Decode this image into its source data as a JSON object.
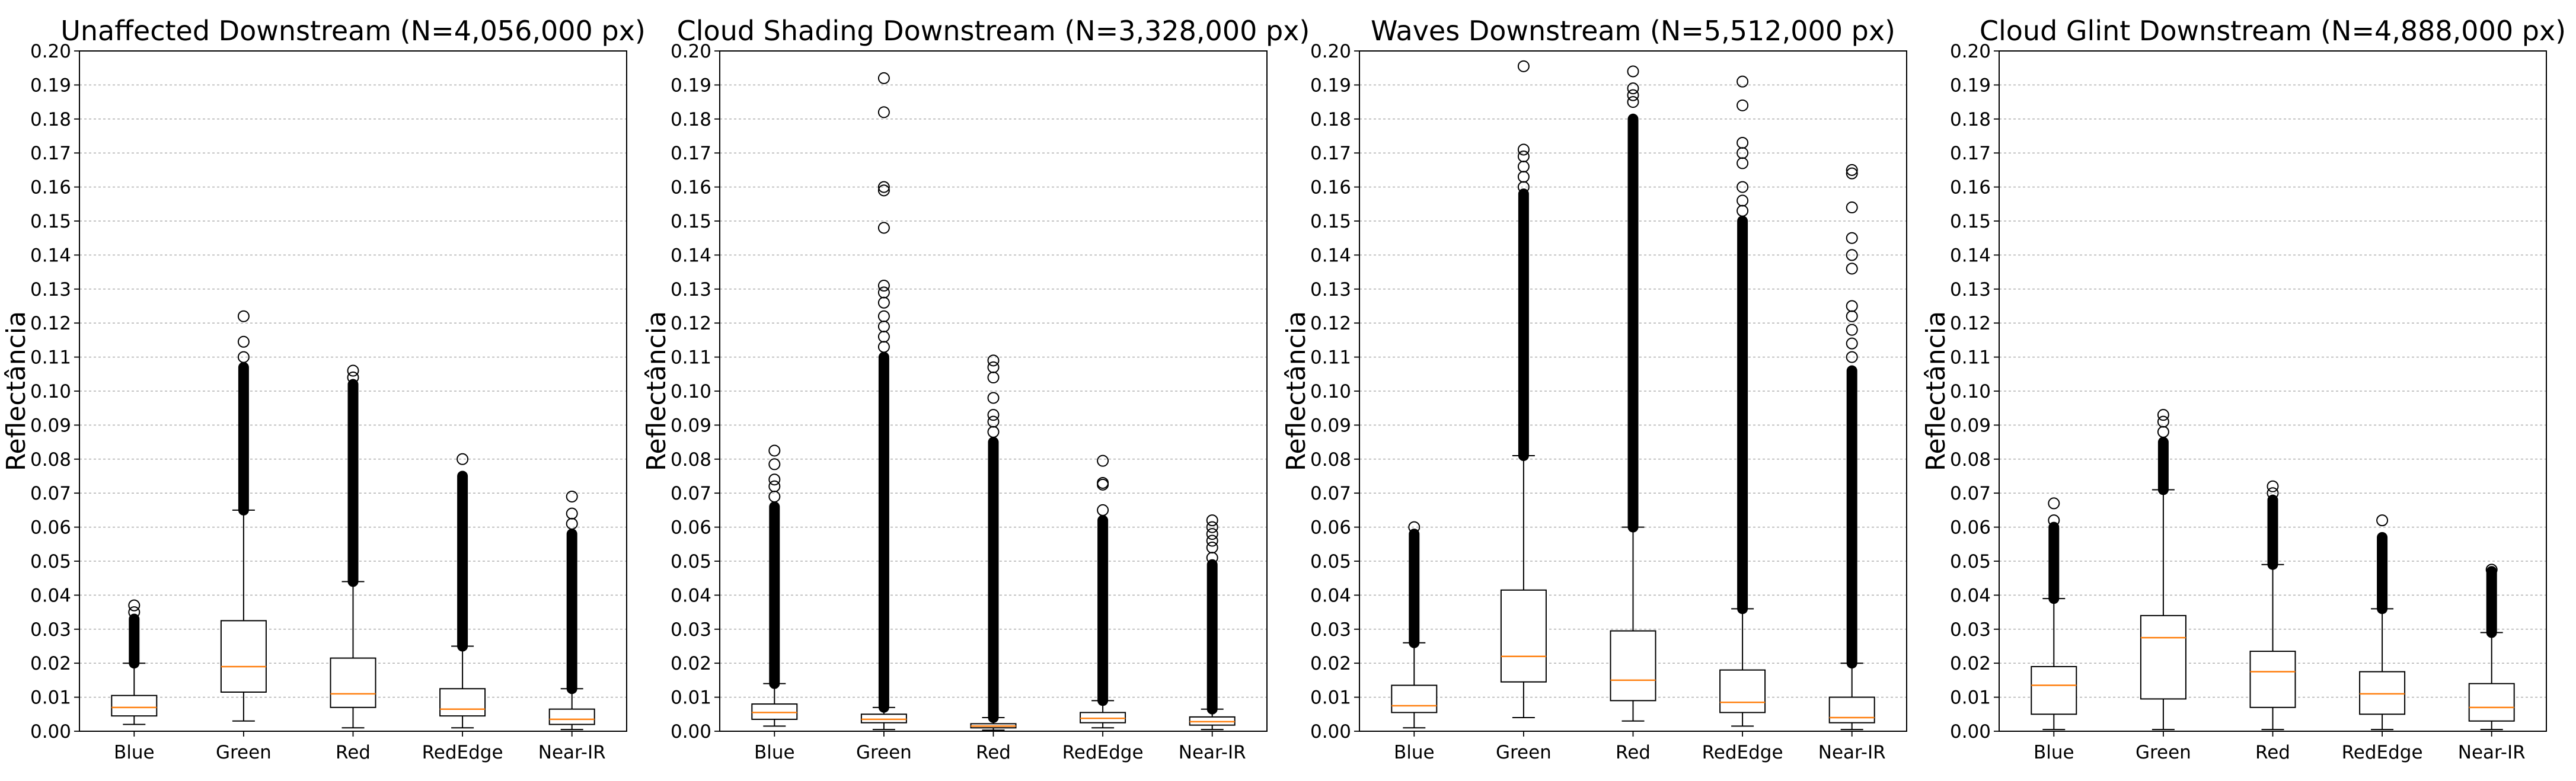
{
  "figure": {
    "background": "#ffffff"
  },
  "style": {
    "box_edge": "#000000",
    "median_color": "#ff7f0e",
    "outlier_edge": "#000000",
    "grid_color": "#b0b0b0"
  },
  "chart_data": [
    {
      "type": "boxplot",
      "title": "Unaffected Downstream (N=4,056,000 px)",
      "ylabel": "Reflectância",
      "xlabel": "",
      "ylim": [
        0,
        0.2
      ],
      "yticks": [
        "0.00",
        "0.01",
        "0.02",
        "0.03",
        "0.04",
        "0.05",
        "0.06",
        "0.07",
        "0.08",
        "0.09",
        "0.10",
        "0.11",
        "0.12",
        "0.13",
        "0.14",
        "0.15",
        "0.16",
        "0.17",
        "0.18",
        "0.19",
        "0.20"
      ],
      "grid": "y-dashed",
      "categories": [
        "Blue",
        "Green",
        "Red",
        "RedEdge",
        "Near-IR"
      ],
      "boxes": [
        {
          "whisker_low": 0.002,
          "q1": 0.0045,
          "median": 0.007,
          "q3": 0.0105,
          "whisker_high": 0.02,
          "flier_dense": [
            0.02,
            0.033
          ],
          "fliers": [
            0.035,
            0.037
          ]
        },
        {
          "whisker_low": 0.003,
          "q1": 0.0115,
          "median": 0.019,
          "q3": 0.0325,
          "whisker_high": 0.065,
          "flier_dense": [
            0.065,
            0.107
          ],
          "fliers": [
            0.11,
            0.1145,
            0.122
          ]
        },
        {
          "whisker_low": 0.001,
          "q1": 0.007,
          "median": 0.011,
          "q3": 0.0215,
          "whisker_high": 0.044,
          "flier_dense": [
            0.044,
            0.102
          ],
          "fliers": [
            0.104,
            0.106
          ]
        },
        {
          "whisker_low": 0.001,
          "q1": 0.0045,
          "median": 0.0065,
          "q3": 0.0125,
          "whisker_high": 0.025,
          "flier_dense": [
            0.025,
            0.075
          ],
          "fliers": [
            0.08
          ]
        },
        {
          "whisker_low": 0.0005,
          "q1": 0.002,
          "median": 0.0035,
          "q3": 0.0065,
          "whisker_high": 0.0125,
          "flier_dense": [
            0.0125,
            0.058
          ],
          "fliers": [
            0.061,
            0.064,
            0.069
          ]
        }
      ]
    },
    {
      "type": "boxplot",
      "title": "Cloud Shading Downstream (N=3,328,000 px)",
      "ylabel": "Reflectância",
      "xlabel": "",
      "ylim": [
        0,
        0.2
      ],
      "yticks": [
        "0.00",
        "0.01",
        "0.02",
        "0.03",
        "0.04",
        "0.05",
        "0.06",
        "0.07",
        "0.08",
        "0.09",
        "0.10",
        "0.11",
        "0.12",
        "0.13",
        "0.14",
        "0.15",
        "0.16",
        "0.17",
        "0.18",
        "0.19",
        "0.20"
      ],
      "grid": "y-dashed",
      "categories": [
        "Blue",
        "Green",
        "Red",
        "RedEdge",
        "Near-IR"
      ],
      "boxes": [
        {
          "whisker_low": 0.0015,
          "q1": 0.0035,
          "median": 0.0055,
          "q3": 0.008,
          "whisker_high": 0.014,
          "flier_dense": [
            0.014,
            0.066
          ],
          "fliers": [
            0.069,
            0.072,
            0.074,
            0.0785,
            0.0825
          ]
        },
        {
          "whisker_low": 0.0005,
          "q1": 0.0025,
          "median": 0.0035,
          "q3": 0.005,
          "whisker_high": 0.007,
          "flier_dense": [
            0.007,
            0.11
          ],
          "fliers": [
            0.113,
            0.116,
            0.119,
            0.122,
            0.126,
            0.129,
            0.131,
            0.148,
            0.159,
            0.16,
            0.182,
            0.192
          ]
        },
        {
          "whisker_low": 0.0003,
          "q1": 0.001,
          "median": 0.0015,
          "q3": 0.0022,
          "whisker_high": 0.004,
          "flier_dense": [
            0.004,
            0.085
          ],
          "fliers": [
            0.088,
            0.091,
            0.093,
            0.098,
            0.104,
            0.107,
            0.109
          ]
        },
        {
          "whisker_low": 0.001,
          "q1": 0.0025,
          "median": 0.0038,
          "q3": 0.0055,
          "whisker_high": 0.009,
          "flier_dense": [
            0.009,
            0.062
          ],
          "fliers": [
            0.065,
            0.0725,
            0.073,
            0.0795
          ]
        },
        {
          "whisker_low": 0.0005,
          "q1": 0.0018,
          "median": 0.0028,
          "q3": 0.0042,
          "whisker_high": 0.0065,
          "flier_dense": [
            0.0065,
            0.049
          ],
          "fliers": [
            0.051,
            0.054,
            0.056,
            0.058,
            0.06,
            0.062
          ]
        }
      ]
    },
    {
      "type": "boxplot",
      "title": "Waves Downstream (N=5,512,000 px)",
      "ylabel": "Reflectância",
      "xlabel": "",
      "ylim": [
        0,
        0.2
      ],
      "yticks": [
        "0.00",
        "0.01",
        "0.02",
        "0.03",
        "0.04",
        "0.05",
        "0.06",
        "0.07",
        "0.08",
        "0.09",
        "0.10",
        "0.11",
        "0.12",
        "0.13",
        "0.14",
        "0.15",
        "0.16",
        "0.17",
        "0.18",
        "0.19",
        "0.20"
      ],
      "grid": "y-dashed",
      "categories": [
        "Blue",
        "Green",
        "Red",
        "RedEdge",
        "Near-IR"
      ],
      "boxes": [
        {
          "whisker_low": 0.001,
          "q1": 0.0055,
          "median": 0.0075,
          "q3": 0.0135,
          "whisker_high": 0.026,
          "flier_dense": [
            0.026,
            0.058
          ],
          "fliers": [
            0.06
          ]
        },
        {
          "whisker_low": 0.004,
          "q1": 0.0145,
          "median": 0.022,
          "q3": 0.0415,
          "whisker_high": 0.081,
          "flier_dense": [
            0.081,
            0.158
          ],
          "fliers": [
            0.16,
            0.163,
            0.166,
            0.169,
            0.171,
            0.1955
          ]
        },
        {
          "whisker_low": 0.003,
          "q1": 0.009,
          "median": 0.015,
          "q3": 0.0295,
          "whisker_high": 0.06,
          "flier_dense": [
            0.06,
            0.18
          ],
          "fliers": [
            0.185,
            0.187,
            0.189,
            0.194
          ]
        },
        {
          "whisker_low": 0.0015,
          "q1": 0.0055,
          "median": 0.0085,
          "q3": 0.018,
          "whisker_high": 0.036,
          "flier_dense": [
            0.036,
            0.15
          ],
          "fliers": [
            0.153,
            0.156,
            0.16,
            0.167,
            0.17,
            0.173,
            0.184,
            0.191
          ]
        },
        {
          "whisker_low": 0.0005,
          "q1": 0.0025,
          "median": 0.004,
          "q3": 0.01,
          "whisker_high": 0.02,
          "flier_dense": [
            0.02,
            0.106
          ],
          "fliers": [
            0.11,
            0.114,
            0.118,
            0.122,
            0.125,
            0.136,
            0.14,
            0.145,
            0.154,
            0.164,
            0.165
          ]
        }
      ]
    },
    {
      "type": "boxplot",
      "title": "Cloud Glint Downstream (N=4,888,000 px)",
      "ylabel": "Reflectância",
      "xlabel": "",
      "ylim": [
        0,
        0.2
      ],
      "yticks": [
        "0.00",
        "0.01",
        "0.02",
        "0.03",
        "0.04",
        "0.05",
        "0.06",
        "0.07",
        "0.08",
        "0.09",
        "0.10",
        "0.11",
        "0.12",
        "0.13",
        "0.14",
        "0.15",
        "0.16",
        "0.17",
        "0.18",
        "0.19",
        "0.20"
      ],
      "grid": "y-dashed",
      "categories": [
        "Blue",
        "Green",
        "Red",
        "RedEdge",
        "Near-IR"
      ],
      "boxes": [
        {
          "whisker_low": 0.0005,
          "q1": 0.005,
          "median": 0.0135,
          "q3": 0.019,
          "whisker_high": 0.039,
          "flier_dense": [
            0.039,
            0.06
          ],
          "fliers": [
            0.062,
            0.067
          ]
        },
        {
          "whisker_low": 0.0005,
          "q1": 0.0095,
          "median": 0.0275,
          "q3": 0.034,
          "whisker_high": 0.071,
          "flier_dense": [
            0.071,
            0.085
          ],
          "fliers": [
            0.088,
            0.091,
            0.093
          ]
        },
        {
          "whisker_low": 0.0005,
          "q1": 0.007,
          "median": 0.0175,
          "q3": 0.0235,
          "whisker_high": 0.049,
          "flier_dense": [
            0.049,
            0.068
          ],
          "fliers": [
            0.07,
            0.072
          ]
        },
        {
          "whisker_low": 0.0005,
          "q1": 0.005,
          "median": 0.011,
          "q3": 0.0175,
          "whisker_high": 0.036,
          "flier_dense": [
            0.036,
            0.057
          ],
          "fliers": [
            0.062
          ]
        },
        {
          "whisker_low": 0.0005,
          "q1": 0.003,
          "median": 0.007,
          "q3": 0.014,
          "whisker_high": 0.029,
          "flier_dense": [
            0.029,
            0.047
          ],
          "fliers": [
            0.0475
          ]
        }
      ]
    }
  ]
}
